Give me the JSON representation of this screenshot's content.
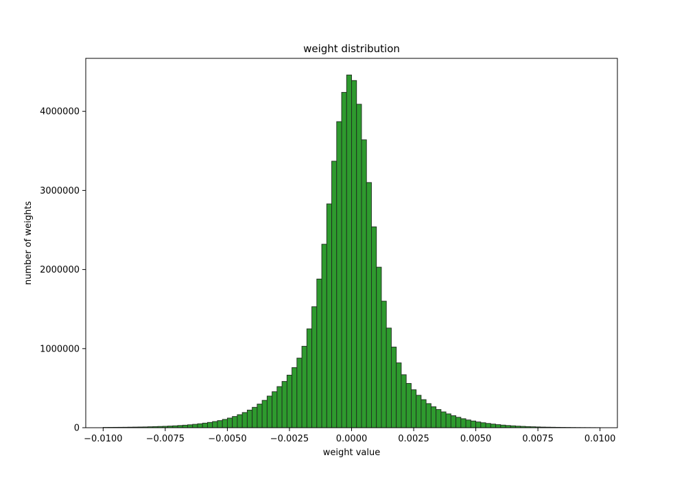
{
  "chart_data": {
    "type": "bar",
    "title": "weight distribution",
    "xlabel": "weight value",
    "ylabel": "number of weights",
    "xlim": [
      -0.0107,
      0.0107
    ],
    "ylim": [
      0,
      4670000
    ],
    "grid": false,
    "colors": {
      "bar_fill": "#2e9a2e",
      "bar_edge": "#1f2a1f"
    },
    "bin_range": [
      -0.01,
      0.01
    ],
    "x_ticks": [
      -0.01,
      -0.0075,
      -0.005,
      -0.0025,
      0.0,
      0.0025,
      0.005,
      0.0075,
      0.01
    ],
    "x_tick_labels": [
      "−0.0100",
      "−0.0075",
      "−0.0050",
      "−0.0025",
      "0.0000",
      "0.0025",
      "0.0050",
      "0.0075",
      "0.0100"
    ],
    "y_ticks": [
      0,
      1000000,
      2000000,
      3000000,
      4000000
    ],
    "y_tick_labels": [
      "0",
      "1000000",
      "2000000",
      "3000000",
      "4000000"
    ],
    "values": [
      4000,
      4500,
      5000,
      5500,
      6000,
      7000,
      8000,
      9000,
      10000,
      12000,
      14000,
      16000,
      18000,
      21000,
      24000,
      28000,
      32000,
      37000,
      43000,
      50000,
      58000,
      67000,
      78000,
      90000,
      105000,
      122000,
      142000,
      165000,
      192000,
      223000,
      258000,
      299000,
      346000,
      400000,
      455000,
      520000,
      585000,
      665000,
      760000,
      880000,
      1030000,
      1250000,
      1530000,
      1880000,
      2320000,
      2830000,
      3370000,
      3870000,
      4240000,
      4460000,
      4390000,
      4090000,
      3640000,
      3100000,
      2540000,
      2030000,
      1600000,
      1260000,
      1020000,
      820000,
      670000,
      560000,
      480000,
      410000,
      355000,
      305000,
      265000,
      230000,
      200000,
      175000,
      152000,
      132000,
      114000,
      98000,
      85000,
      73000,
      63000,
      54000,
      46000,
      39000,
      33000,
      28000,
      24000,
      20000,
      17000,
      14000,
      12000,
      10000,
      8000,
      7000,
      6000,
      5000,
      4200,
      3600,
      3000,
      2500,
      2100,
      1800,
      1500,
      1200
    ]
  }
}
